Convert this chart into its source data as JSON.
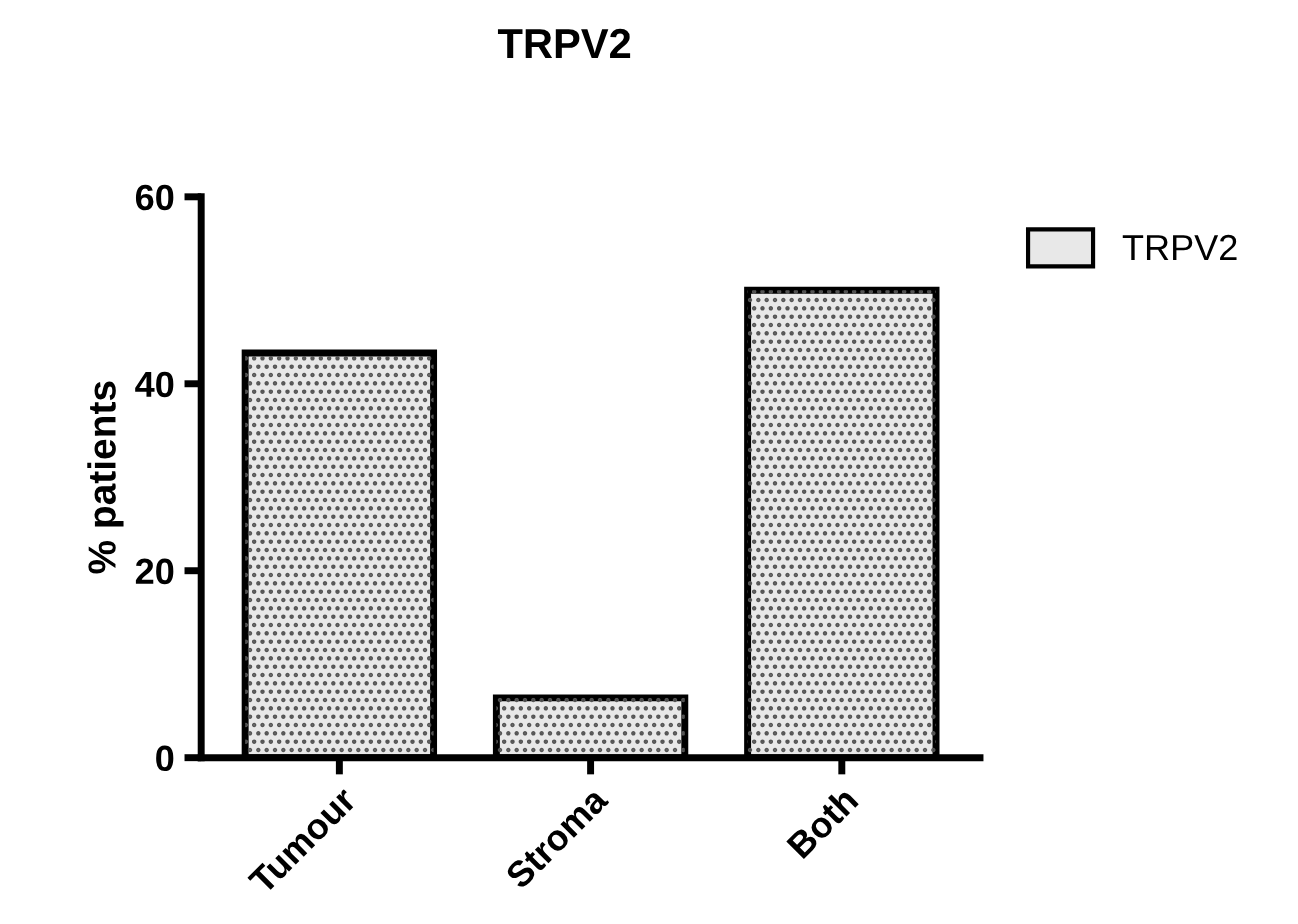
{
  "chart_data": {
    "type": "bar",
    "title": "TRPV2",
    "ylabel": "% patients",
    "categories": [
      "Tumour",
      "Stroma",
      "Both"
    ],
    "series": [
      {
        "name": "TRPV2",
        "color": "#e8e8e8",
        "values": [
          43.3,
          6.4,
          50
        ]
      }
    ],
    "ylim": [
      0,
      60
    ],
    "yticks": [
      0,
      20,
      40,
      60
    ],
    "grid": false,
    "legend": "top right"
  }
}
